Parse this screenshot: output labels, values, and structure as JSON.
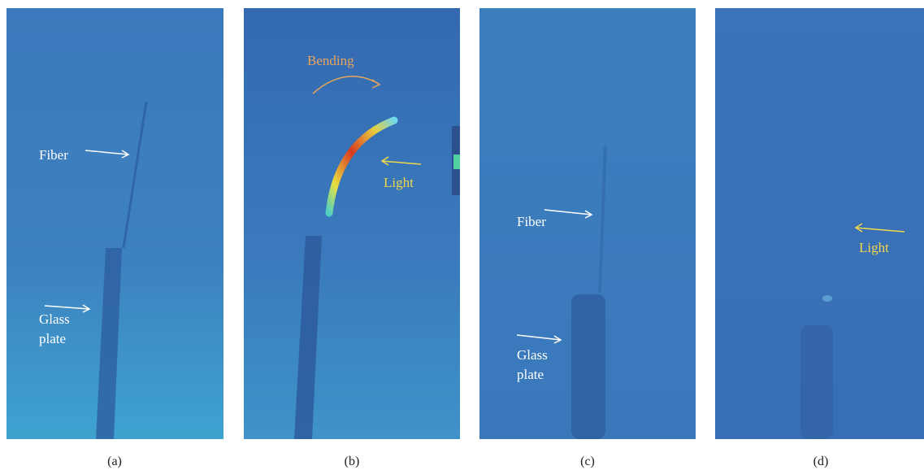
{
  "panels": [
    {
      "caption": "(a)",
      "labels": [
        {
          "text": "Fiber"
        },
        {
          "lines": [
            "Glass",
            "plate"
          ]
        }
      ]
    },
    {
      "caption": "(b)",
      "labels": [
        {
          "text": "Bending"
        },
        {
          "text": "Light"
        }
      ]
    },
    {
      "caption": "(c)",
      "labels": [
        {
          "text": "Fiber"
        },
        {
          "lines": [
            "Glass",
            "plate"
          ]
        }
      ]
    },
    {
      "caption": "(d)",
      "labels": [
        {
          "text": "Light"
        }
      ]
    }
  ]
}
